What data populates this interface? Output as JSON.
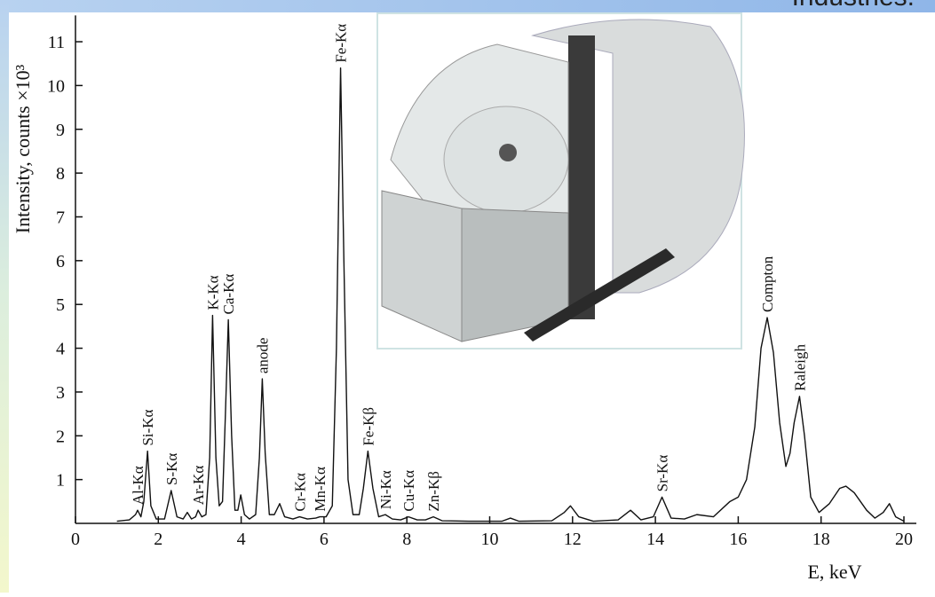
{
  "header_text": "Industries.",
  "chart_data": {
    "type": "line",
    "x_label": "E, keV",
    "y_label": "Intensity, counts ×10³",
    "xlim": [
      0,
      20.3
    ],
    "ylim": [
      0,
      11.6
    ],
    "xticks": [
      0,
      2,
      4,
      6,
      8,
      10,
      12,
      14,
      16,
      18,
      20
    ],
    "yticks": [
      1,
      2,
      3,
      4,
      5,
      6,
      7,
      8,
      9,
      10,
      11
    ],
    "x": [
      1.0,
      1.3,
      1.45,
      1.5,
      1.58,
      1.65,
      1.74,
      1.82,
      1.95,
      2.15,
      2.31,
      2.45,
      2.6,
      2.7,
      2.8,
      2.9,
      2.96,
      3.05,
      3.15,
      3.24,
      3.31,
      3.39,
      3.47,
      3.55,
      3.62,
      3.69,
      3.77,
      3.85,
      3.92,
      3.99,
      4.08,
      4.2,
      4.35,
      4.44,
      4.51,
      4.58,
      4.68,
      4.8,
      4.93,
      5.05,
      5.25,
      5.41,
      5.6,
      5.8,
      5.9,
      6.05,
      6.2,
      6.3,
      6.4,
      6.48,
      6.58,
      6.7,
      6.85,
      6.95,
      7.06,
      7.18,
      7.32,
      7.48,
      7.65,
      7.85,
      8.04,
      8.25,
      8.45,
      8.64,
      8.85,
      9.5,
      10.3,
      10.5,
      10.7,
      11.5,
      11.8,
      11.95,
      12.15,
      12.5,
      13.1,
      13.4,
      13.65,
      13.95,
      14.16,
      14.38,
      14.7,
      15.0,
      15.4,
      15.8,
      16.0,
      16.2,
      16.4,
      16.55,
      16.7,
      16.85,
      17.0,
      17.15,
      17.25,
      17.35,
      17.48,
      17.6,
      17.75,
      17.95,
      18.2,
      18.45,
      18.6,
      18.8,
      19.1,
      19.3,
      19.5,
      19.65,
      19.8,
      20.0
    ],
    "series": [
      {
        "color": "#111111",
        "values": [
          0.05,
          0.08,
          0.2,
          0.3,
          0.15,
          0.5,
          1.65,
          0.4,
          0.1,
          0.1,
          0.75,
          0.15,
          0.1,
          0.25,
          0.1,
          0.15,
          0.3,
          0.15,
          0.2,
          1.5,
          4.75,
          1.5,
          0.4,
          0.5,
          2.5,
          4.65,
          2.0,
          0.3,
          0.3,
          0.65,
          0.2,
          0.1,
          0.2,
          1.5,
          3.3,
          1.6,
          0.2,
          0.2,
          0.45,
          0.15,
          0.1,
          0.15,
          0.1,
          0.12,
          0.15,
          0.15,
          0.4,
          4.0,
          10.4,
          6.0,
          1.0,
          0.2,
          0.2,
          0.8,
          1.65,
          0.8,
          0.15,
          0.2,
          0.1,
          0.08,
          0.15,
          0.08,
          0.08,
          0.15,
          0.06,
          0.05,
          0.05,
          0.12,
          0.05,
          0.06,
          0.25,
          0.4,
          0.15,
          0.05,
          0.08,
          0.3,
          0.08,
          0.15,
          0.6,
          0.12,
          0.1,
          0.2,
          0.15,
          0.5,
          0.6,
          1.0,
          2.2,
          4.0,
          4.7,
          3.9,
          2.3,
          1.3,
          1.6,
          2.3,
          2.9,
          2.0,
          0.6,
          0.25,
          0.45,
          0.8,
          0.85,
          0.7,
          0.3,
          0.12,
          0.25,
          0.45,
          0.15,
          0.05
        ]
      }
    ],
    "annotations": [
      {
        "text": "Al-Kα",
        "x": 1.5
      },
      {
        "text": "Si-Kα",
        "x": 1.74
      },
      {
        "text": "S-Kα",
        "x": 2.31
      },
      {
        "text": "Ar-Kα",
        "x": 2.96
      },
      {
        "text": "K-Kα",
        "x": 3.31
      },
      {
        "text": "Ca-Kα",
        "x": 3.69
      },
      {
        "text": "anode",
        "x": 4.51
      },
      {
        "text": "Cr-Kα",
        "x": 5.41
      },
      {
        "text": "Mn-Kα",
        "x": 5.9
      },
      {
        "text": "Fe-Kα",
        "x": 6.4
      },
      {
        "text": "Fe-Kβ",
        "x": 7.06
      },
      {
        "text": "Ni-Kα",
        "x": 7.48
      },
      {
        "text": "Cu-Kα",
        "x": 8.04
      },
      {
        "text": "Zn-Kβ",
        "x": 8.64
      },
      {
        "text": "Sr-Kα",
        "x": 14.16
      },
      {
        "text": "Compton",
        "x": 16.7
      },
      {
        "text": "Raleigh",
        "x": 17.48
      }
    ]
  }
}
